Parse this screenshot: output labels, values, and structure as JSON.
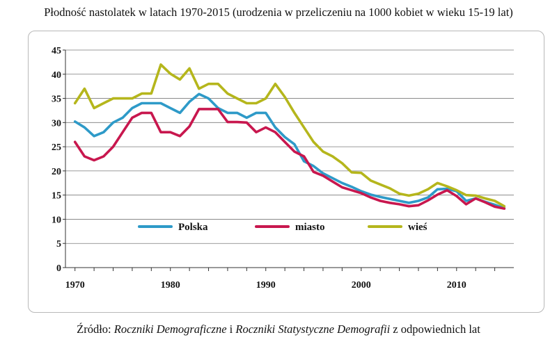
{
  "title": "Płodność nastolatek w latach 1970-2015 (urodzenia w przeliczeniu na 1000 kobiet w wieku 15-19 lat)",
  "source": {
    "prefix": "Źródło: ",
    "italic1": "Roczniki Demograficzne",
    "mid": " i ",
    "italic2": "Roczniki Statystyczne Demografii",
    "suffix": " z odpowiednich lat"
  },
  "chart_data": {
    "type": "line",
    "title": "Płodność nastolatek w latach 1970-2015 (urodzenia w przeliczeniu na 1000 kobiet w wieku 15-19 lat)",
    "xlabel": "",
    "ylabel": "",
    "xlim": [
      1969,
      2016
    ],
    "ylim": [
      0,
      45
    ],
    "x_ticks": [
      1970,
      1980,
      1990,
      2000,
      2010
    ],
    "y_ticks": [
      0,
      5,
      10,
      15,
      20,
      25,
      30,
      35,
      40,
      45
    ],
    "grid": "horizontal",
    "legend_position": "bottom-center inside plot",
    "x": [
      1970,
      1971,
      1972,
      1973,
      1974,
      1975,
      1976,
      1977,
      1978,
      1979,
      1980,
      1981,
      1982,
      1983,
      1984,
      1985,
      1986,
      1987,
      1988,
      1989,
      1990,
      1991,
      1992,
      1993,
      1994,
      1995,
      1996,
      1997,
      1998,
      1999,
      2000,
      2001,
      2002,
      2003,
      2004,
      2005,
      2006,
      2007,
      2008,
      2009,
      2010,
      2011,
      2012,
      2013,
      2014,
      2015
    ],
    "series": [
      {
        "name": "Polska",
        "color": "#2e9ac8",
        "values": [
          30.2,
          29,
          27.2,
          28,
          30,
          31,
          33,
          34,
          34,
          34,
          33,
          32,
          34.3,
          35.9,
          35,
          33,
          32,
          32,
          31,
          32,
          32,
          29,
          27,
          25.5,
          22,
          21,
          19.5,
          18.5,
          17.5,
          16.7,
          15.8,
          15.1,
          14.6,
          14.2,
          13.8,
          13.4,
          13.8,
          14.5,
          16.2,
          16.3,
          15.8,
          13.8,
          14.3,
          13.6,
          13,
          12.3
        ]
      },
      {
        "name": "miasto",
        "color": "#c8174e",
        "values": [
          26,
          23,
          22.2,
          23,
          25,
          28,
          31,
          32,
          32,
          28,
          28,
          27.2,
          29.2,
          32.8,
          32.8,
          32.8,
          30.1,
          30.1,
          30,
          28,
          29,
          28,
          26,
          24,
          23,
          19.8,
          19,
          17.8,
          16.6,
          16,
          15.4,
          14.5,
          13.8,
          13.4,
          13.1,
          12.7,
          12.9,
          13.9,
          15.1,
          16,
          14.8,
          13.1,
          14.3,
          13.5,
          12.6,
          12.2
        ]
      },
      {
        "name": "wieś",
        "color": "#b5b61c",
        "values": [
          34,
          37,
          33,
          34,
          35,
          35,
          35,
          36,
          36,
          42,
          40.1,
          38.9,
          41.2,
          37,
          38,
          38,
          36,
          35,
          34,
          34,
          35,
          38,
          35.3,
          32,
          29,
          26,
          24,
          23,
          21.6,
          19.7,
          19.6,
          18,
          17.2,
          16.4,
          15.3,
          14.9,
          15.3,
          16.2,
          17.5,
          16.8,
          16,
          15,
          14.9,
          14.3,
          13.8,
          12.7
        ]
      }
    ]
  }
}
